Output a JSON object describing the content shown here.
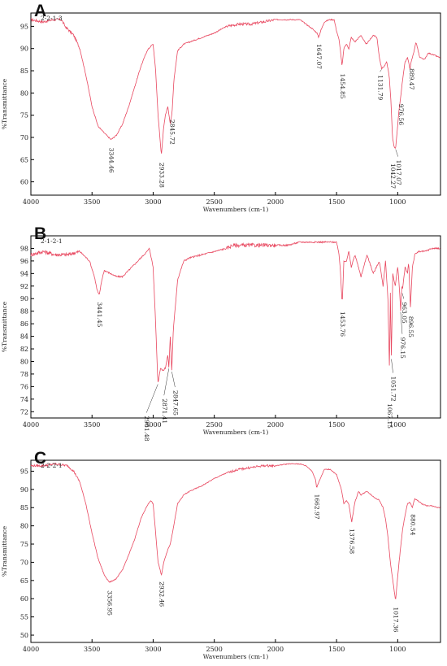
{
  "colors": {
    "spectrum": "#e8475f",
    "axis": "#000000",
    "text": "#222222"
  },
  "charts": [
    {
      "panel": "A",
      "sample_id": "2-2-1-3",
      "chart_data": {
        "type": "line",
        "xlabel": "Wavenumbers (cm-1)",
        "ylabel": "%Transmittance",
        "xlim": [
          4000,
          650
        ],
        "ylim": [
          57,
          98
        ],
        "x_ticks": [
          4000,
          3500,
          3000,
          2500,
          2000,
          1500,
          1000
        ],
        "y_ticks": [
          60,
          65,
          70,
          75,
          80,
          85,
          90,
          95
        ],
        "series": [
          {
            "x": [
              4000,
              3900,
              3820,
              3750,
              3720,
              3650,
              3600,
              3550,
              3500,
              3450,
              3400,
              3344.46,
              3300,
              3250,
              3200,
              3150,
              3100,
              3050,
              3020,
              3000,
              2980,
              2960,
              2933.28,
              2915,
              2900,
              2880,
              2860,
              2845.72,
              2830,
              2800,
              2750,
              2700,
              2600,
              2500,
              2400,
              2300,
              2200,
              2100,
              2000,
              1900,
              1800,
              1750,
              1700,
              1660,
              1647.07,
              1630,
              1600,
              1560,
              1520,
              1500,
              1480,
              1470,
              1454.85,
              1440,
              1420,
              1400,
              1380,
              1350,
              1300,
              1260,
              1240,
              1200,
              1170,
              1150,
              1131.79,
              1110,
              1090,
              1070,
              1055,
              1042.27,
              1030,
              1017.07,
              1005,
              990,
              976.56,
              960,
              940,
              920,
              900,
              889.47,
              870,
              850,
              820,
              780,
              750,
              700,
              660
            ],
            "y": [
              96.5,
              96,
              96.5,
              96.5,
              95,
              93,
              90,
              84,
              77,
              72.5,
              71,
              69.5,
              70.5,
              73,
              77,
              81.5,
              86,
              89.5,
              90.5,
              91,
              85,
              75,
              66,
              72,
              75,
              77,
              73,
              75.5,
              83,
              89.5,
              91,
              91.5,
              92.5,
              93.5,
              95,
              95.5,
              95.5,
              96,
              96.5,
              96.5,
              96.5,
              95.5,
              94.5,
              93.5,
              92.5,
              94,
              96,
              96.5,
              96.5,
              94,
              92,
              90,
              86,
              90,
              91,
              90,
              92.5,
              91.5,
              93,
              91,
              91.5,
              93,
              92.5,
              88,
              85.5,
              86,
              87,
              84,
              78,
              70,
              68,
              67.5,
              71,
              76,
              79,
              83,
              87,
              88,
              85.5,
              87,
              89,
              91.5,
              88,
              87.5,
              89,
              88.5,
              88
            ]
          }
        ],
        "annotations": [
          "3344.46",
          "2933.28",
          "2845.72",
          "1647.07",
          "1454.85",
          "1131.79",
          "1042.27",
          "1017.07",
          "976.56",
          "889.47"
        ]
      }
    },
    {
      "panel": "B",
      "sample_id": "2-1-2-1",
      "chart_data": {
        "type": "line",
        "xlabel": "Wavenumbers (cm-1)",
        "ylabel": "%Transmittance",
        "xlim": [
          4000,
          650
        ],
        "ylim": [
          71,
          100
        ],
        "x_ticks": [
          4000,
          3500,
          3000,
          2500,
          2000,
          1500,
          1000
        ],
        "y_ticks": [
          72,
          74,
          76,
          78,
          80,
          82,
          84,
          86,
          88,
          90,
          92,
          94,
          96,
          98
        ],
        "series": [
          {
            "x": [
              4000,
              3900,
              3800,
              3700,
              3600,
              3520,
              3480,
              3460,
              3441.45,
              3420,
              3400,
              3350,
              3300,
              3250,
              3200,
              3150,
              3100,
              3050,
              3030,
              3000,
              2980,
              2961.48,
              2940,
              2920,
              2900,
              2880,
              2871.41,
              2860,
              2847.65,
              2835,
              2800,
              2750,
              2700,
              2600,
              2500,
              2400,
              2350,
              2300,
              2200,
              2100,
              2000,
              1900,
              1800,
              1700,
              1600,
              1550,
              1500,
              1480,
              1470,
              1453.76,
              1440,
              1420,
              1400,
              1380,
              1350,
              1300,
              1250,
              1200,
              1150,
              1120,
              1100,
              1080,
              1067.15,
              1060,
              1051.72,
              1040,
              1020,
              1000,
              990,
              976.15,
              965,
              963.05,
              940,
              920,
              910,
              896.55,
              880,
              860,
              830,
              780,
              720,
              680,
              660
            ],
            "y": [
              97,
              97.5,
              97,
              97,
              97.5,
              96,
              93.5,
              91.5,
              90.5,
              93,
              94.5,
              94,
              93.5,
              93.5,
              94.5,
              95.5,
              96.5,
              97.5,
              98,
              95,
              86,
              76.5,
              79,
              78.5,
              79,
              81,
              79,
              84,
              78.5,
              85,
              93,
              96,
              96.5,
              97,
              97.5,
              98,
              98.5,
              98.5,
              98.5,
              98.5,
              98.5,
              98.5,
              99,
              99,
              99,
              99,
              99,
              97,
              95,
              89,
              96,
              96,
              97.5,
              95,
              97,
              93.5,
              97,
              94,
              96,
              92,
              96,
              90,
              78.5,
              91,
              80.5,
              94,
              92,
              95,
              93,
              88,
              93,
              91,
              95,
              94,
              96,
              88.5,
              95,
              97,
              97.5,
              97.5,
              98,
              98,
              98
            ]
          }
        ],
        "annotations": [
          "3441.45",
          "2961.48",
          "2871.41",
          "2847.65",
          "1453.76",
          "1067.15",
          "1051.72",
          "976.15",
          "963.05",
          "896.55"
        ]
      }
    },
    {
      "panel": "C",
      "sample_id": "2-2-2-1",
      "chart_data": {
        "type": "line",
        "xlabel": "Wavenumbers (cm-1)",
        "ylabel": "%Transmittance",
        "xlim": [
          4000,
          650
        ],
        "ylim": [
          48,
          98
        ],
        "x_ticks": [
          4000,
          3500,
          3000,
          2500,
          2000,
          1500,
          1000
        ],
        "y_ticks": [
          50,
          55,
          60,
          65,
          70,
          75,
          80,
          85,
          90,
          95
        ],
        "series": [
          {
            "x": [
              4000,
              3900,
              3800,
              3700,
              3650,
              3600,
              3550,
              3500,
              3450,
              3400,
              3356.95,
              3300,
              3250,
              3200,
              3150,
              3100,
              3050,
              3020,
              3000,
              2980,
              2960,
              2932.46,
              2910,
              2880,
              2860,
              2840,
              2800,
              2750,
              2700,
              2600,
              2500,
              2400,
              2300,
              2200,
              2100,
              2000,
              1900,
              1800,
              1750,
              1700,
              1670,
              1662.97,
              1640,
              1600,
              1550,
              1500,
              1460,
              1440,
              1420,
              1400,
              1376.58,
              1350,
              1320,
              1300,
              1250,
              1200,
              1150,
              1120,
              1100,
              1080,
              1060,
              1040,
              1017.36,
              1000,
              980,
              960,
              940,
              920,
              900,
              880.54,
              860,
              840,
              800,
              760,
              720,
              680,
              660
            ],
            "y": [
              96.5,
              96.5,
              97,
              96.5,
              95,
              92,
              86,
              78,
              71,
              66.5,
              64.5,
              65.5,
              68,
              72,
              76.5,
              82,
              85.5,
              87,
              86,
              78,
              70,
              66.5,
              70.5,
              73.5,
              75,
              78.5,
              86,
              88.5,
              89.5,
              91,
              93,
              94.5,
              95.5,
              96,
              96.5,
              96.5,
              97,
              97,
              96.5,
              95,
              92.5,
              90.5,
              92.5,
              95.5,
              95.5,
              94,
              90,
              86,
              87,
              86,
              81,
              86.5,
              89.5,
              88.5,
              89.5,
              88,
              87,
              85,
              82,
              77,
              70,
              65,
              59.5,
              66,
              73,
              79,
              83,
              86,
              86.5,
              85,
              87.5,
              87,
              86,
              85.5,
              85.5,
              85,
              85
            ]
          }
        ],
        "annotations": [
          "3356.95",
          "2932.46",
          "1662.97",
          "1376.58",
          "1017.36",
          "880.54"
        ]
      }
    }
  ]
}
